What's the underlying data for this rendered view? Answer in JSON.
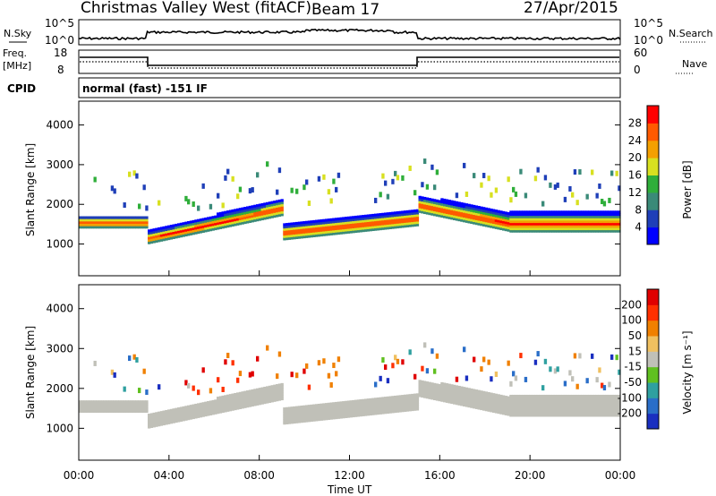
{
  "header": {
    "station": "Christmas Valley West (fitACF)",
    "beam": "Beam 17",
    "date": "27/Apr/2015"
  },
  "noise_panel": {
    "left_label": "N.Sky",
    "right_label": "N.Search",
    "left_ticks": [
      "10^5",
      "10^0"
    ],
    "right_ticks": [
      "10^5",
      "10^0"
    ]
  },
  "freq_panel": {
    "left_label_line1": "Freq.",
    "left_label_line2": "[MHz]",
    "left_ticks": [
      "18",
      "8"
    ],
    "right_ticks": [
      "60",
      "0"
    ],
    "right_label": "Nave"
  },
  "cpid_panel": {
    "label": "CPID",
    "text": "normal (fast) -151 IF"
  },
  "chart_data": [
    {
      "type": "heatmap",
      "name": "power",
      "ylabel": "Slant Range [km]",
      "ylim": [
        200,
        4600
      ],
      "y_ticks": [
        1000,
        2000,
        3000,
        4000
      ],
      "colorbar_label": "Power [dB]",
      "colorbar_ticks": [
        "4",
        "8",
        "12",
        "16",
        "20",
        "24",
        "28"
      ],
      "colors": [
        "#0000ff",
        "#1f3fb8",
        "#3a8a78",
        "#2fae3a",
        "#d8e020",
        "#f4a000",
        "#ff5a00",
        "#ff0000"
      ]
    },
    {
      "type": "heatmap",
      "name": "velocity",
      "ylabel": "Slant Range [km]",
      "ylim": [
        200,
        4600
      ],
      "y_ticks": [
        1000,
        2000,
        3000,
        4000
      ],
      "colorbar_label": "Velocity [m s⁻¹]",
      "colorbar_ticks": [
        "200",
        "100",
        "50",
        "15",
        "-15",
        "-50",
        "-100",
        "-200"
      ],
      "colors": [
        "#1a2fc0",
        "#2a6ec8",
        "#2fa0a0",
        "#60c020",
        "#c0c0b8",
        "#f0c060",
        "#f08000",
        "#ff3000",
        "#e00000"
      ]
    }
  ],
  "x_axis": {
    "ticks": [
      "00:00",
      "04:00",
      "08:00",
      "12:00",
      "16:00",
      "20:00",
      "00:00"
    ],
    "label": "Time UT"
  }
}
